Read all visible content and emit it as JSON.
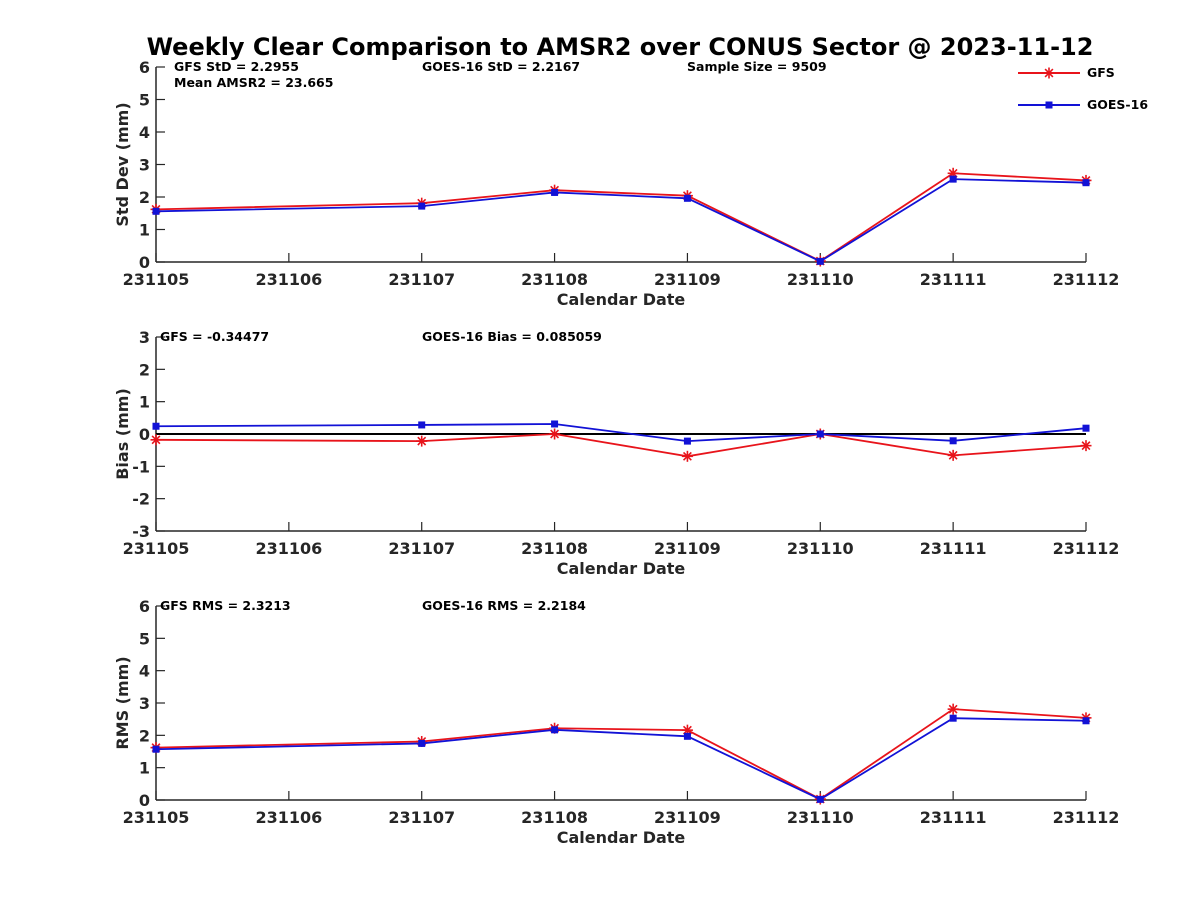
{
  "figure": {
    "title": "Weekly Clear Comparison to AMSR2 over CONUS Sector @ 2023-11-12"
  },
  "legend": {
    "placement": "top-right",
    "entries": [
      {
        "name": "GFS",
        "color": "#e8141b",
        "marker": "asterisk"
      },
      {
        "name": "GOES-16",
        "color": "#1212d6",
        "marker": "square"
      }
    ]
  },
  "chart_data": [
    {
      "type": "line",
      "ylabel": "Std Dev (mm)",
      "xlabel": "Calendar Date",
      "categories": [
        "231105",
        "231106",
        "231107",
        "231108",
        "231109",
        "231110",
        "231111",
        "231112"
      ],
      "ylim": [
        0,
        6
      ],
      "yticks": [
        0,
        1,
        2,
        3,
        4,
        5,
        6
      ],
      "zero_line": false,
      "series": [
        {
          "name": "GFS",
          "color": "#e8141b",
          "marker": "asterisk",
          "x": [
            "231105",
            "231107",
            "231108",
            "231109",
            "231110",
            "231111",
            "231112"
          ],
          "values": [
            1.62,
            1.81,
            2.21,
            2.04,
            0.03,
            2.73,
            2.51
          ]
        },
        {
          "name": "GOES-16",
          "color": "#1212d6",
          "marker": "square",
          "x": [
            "231105",
            "231107",
            "231108",
            "231109",
            "231110",
            "231111",
            "231112"
          ],
          "values": [
            1.56,
            1.72,
            2.14,
            1.96,
            0.02,
            2.55,
            2.44
          ]
        }
      ],
      "annotations": [
        "GFS StD = 2.2955",
        "GOES-16 StD = 2.2167",
        "Sample Size = 9509",
        "Mean AMSR2 = 23.665"
      ]
    },
    {
      "type": "line",
      "ylabel": "Bias (mm)",
      "xlabel": "Calendar Date",
      "categories": [
        "231105",
        "231106",
        "231107",
        "231108",
        "231109",
        "231110",
        "231111",
        "231112"
      ],
      "ylim": [
        -3,
        3
      ],
      "yticks": [
        -3,
        -2,
        -1,
        0,
        1,
        2,
        3
      ],
      "zero_line": true,
      "series": [
        {
          "name": "GFS",
          "color": "#e8141b",
          "marker": "asterisk",
          "x": [
            "231105",
            "231107",
            "231108",
            "231109",
            "231110",
            "231111",
            "231112"
          ],
          "values": [
            -0.18,
            -0.22,
            0.0,
            -0.69,
            0.0,
            -0.66,
            -0.36
          ]
        },
        {
          "name": "GOES-16",
          "color": "#1212d6",
          "marker": "square",
          "x": [
            "231105",
            "231107",
            "231108",
            "231109",
            "231110",
            "231111",
            "231112"
          ],
          "values": [
            0.24,
            0.28,
            0.31,
            -0.22,
            0.0,
            -0.21,
            0.18
          ]
        }
      ],
      "annotations": [
        "GFS = -0.34477",
        "GOES-16 Bias  = 0.085059"
      ]
    },
    {
      "type": "line",
      "ylabel": "RMS (mm)",
      "xlabel": "Calendar Date",
      "categories": [
        "231105",
        "231106",
        "231107",
        "231108",
        "231109",
        "231110",
        "231111",
        "231112"
      ],
      "ylim": [
        0,
        6
      ],
      "yticks": [
        0,
        1,
        2,
        3,
        4,
        5,
        6
      ],
      "zero_line": false,
      "series": [
        {
          "name": "GFS",
          "color": "#e8141b",
          "marker": "asterisk",
          "x": [
            "231105",
            "231107",
            "231108",
            "231109",
            "231110",
            "231111",
            "231112"
          ],
          "values": [
            1.62,
            1.81,
            2.22,
            2.16,
            0.03,
            2.81,
            2.54
          ]
        },
        {
          "name": "GOES-16",
          "color": "#1212d6",
          "marker": "square",
          "x": [
            "231105",
            "231107",
            "231108",
            "231109",
            "231110",
            "231111",
            "231112"
          ],
          "values": [
            1.57,
            1.75,
            2.17,
            1.97,
            0.02,
            2.53,
            2.45
          ]
        }
      ],
      "annotations": [
        "GFS RMS = 2.3213",
        "GOES-16 RMS = 2.2184"
      ]
    }
  ]
}
